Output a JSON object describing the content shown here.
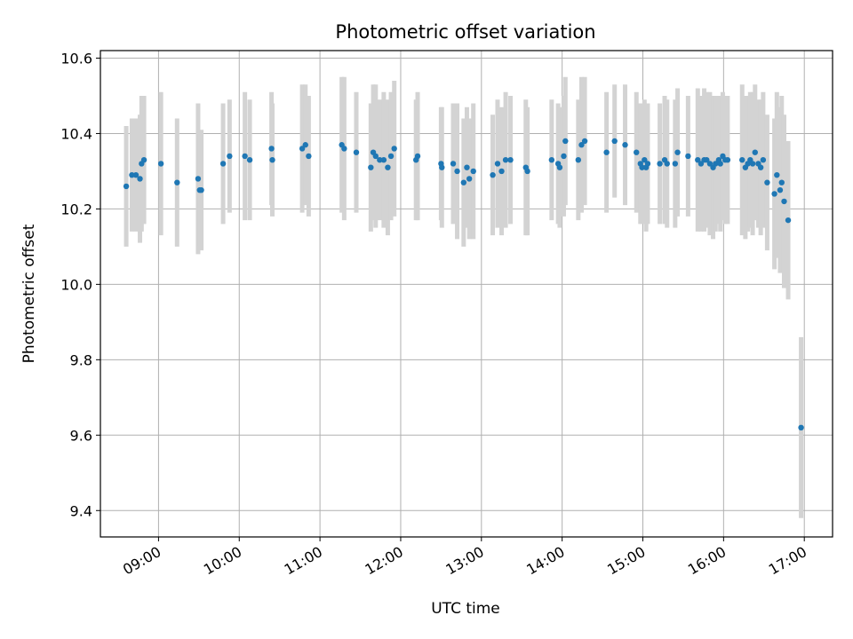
{
  "chart_data": {
    "type": "scatter",
    "title": "Photometric offset variation",
    "xlabel": "UTC time",
    "ylabel": "Photometric offset",
    "x_ticks": [
      "09:00",
      "10:00",
      "11:00",
      "12:00",
      "13:00",
      "14:00",
      "15:00",
      "16:00",
      "17:00"
    ],
    "y_ticks": [
      "9.4",
      "9.6",
      "9.8",
      "10.0",
      "10.2",
      "10.4",
      "10.6"
    ],
    "xlim_hours": [
      8.28,
      17.35
    ],
    "ylim": [
      9.33,
      10.62
    ],
    "grid": true,
    "point_color": "#1f77b4",
    "errorbar_color": "#d3d3d3",
    "points": [
      [
        8.6,
        10.26,
        0.16
      ],
      [
        8.67,
        10.29,
        0.15
      ],
      [
        8.72,
        10.29,
        0.15
      ],
      [
        8.77,
        10.28,
        0.17
      ],
      [
        8.79,
        10.32,
        0.18
      ],
      [
        8.82,
        10.33,
        0.17
      ],
      [
        9.03,
        10.32,
        0.19
      ],
      [
        9.23,
        10.27,
        0.17
      ],
      [
        9.49,
        10.28,
        0.2
      ],
      [
        9.51,
        10.25,
        0.15
      ],
      [
        9.53,
        10.25,
        0.16
      ],
      [
        9.8,
        10.32,
        0.16
      ],
      [
        9.88,
        10.34,
        0.15
      ],
      [
        10.07,
        10.34,
        0.17
      ],
      [
        10.13,
        10.33,
        0.16
      ],
      [
        10.4,
        10.36,
        0.15
      ],
      [
        10.41,
        10.33,
        0.15
      ],
      [
        10.78,
        10.36,
        0.17
      ],
      [
        10.82,
        10.37,
        0.16
      ],
      [
        10.86,
        10.34,
        0.16
      ],
      [
        11.27,
        10.37,
        0.18
      ],
      [
        11.3,
        10.36,
        0.19
      ],
      [
        11.45,
        10.35,
        0.16
      ],
      [
        11.63,
        10.31,
        0.17
      ],
      [
        11.66,
        10.35,
        0.18
      ],
      [
        11.69,
        10.34,
        0.19
      ],
      [
        11.74,
        10.33,
        0.16
      ],
      [
        11.79,
        10.33,
        0.18
      ],
      [
        11.84,
        10.31,
        0.18
      ],
      [
        11.88,
        10.34,
        0.17
      ],
      [
        11.92,
        10.36,
        0.18
      ],
      [
        12.19,
        10.33,
        0.16
      ],
      [
        12.21,
        10.34,
        0.17
      ],
      [
        12.5,
        10.32,
        0.15
      ],
      [
        12.51,
        10.31,
        0.16
      ],
      [
        12.65,
        10.32,
        0.16
      ],
      [
        12.7,
        10.3,
        0.18
      ],
      [
        12.78,
        10.27,
        0.17
      ],
      [
        12.82,
        10.31,
        0.16
      ],
      [
        12.85,
        10.28,
        0.16
      ],
      [
        12.9,
        10.3,
        0.18
      ],
      [
        13.14,
        10.29,
        0.16
      ],
      [
        13.2,
        10.32,
        0.17
      ],
      [
        13.25,
        10.3,
        0.17
      ],
      [
        13.3,
        10.33,
        0.18
      ],
      [
        13.36,
        10.33,
        0.17
      ],
      [
        13.55,
        10.31,
        0.18
      ],
      [
        13.57,
        10.3,
        0.17
      ],
      [
        13.87,
        10.33,
        0.16
      ],
      [
        13.95,
        10.32,
        0.16
      ],
      [
        13.97,
        10.31,
        0.16
      ],
      [
        14.02,
        10.34,
        0.16
      ],
      [
        14.04,
        10.38,
        0.17
      ],
      [
        14.2,
        10.33,
        0.16
      ],
      [
        14.24,
        10.37,
        0.18
      ],
      [
        14.28,
        10.38,
        0.17
      ],
      [
        14.55,
        10.35,
        0.16
      ],
      [
        14.65,
        10.38,
        0.15
      ],
      [
        14.78,
        10.37,
        0.16
      ],
      [
        14.92,
        10.35,
        0.16
      ],
      [
        14.97,
        10.32,
        0.16
      ],
      [
        14.99,
        10.31,
        0.15
      ],
      [
        15.02,
        10.33,
        0.16
      ],
      [
        15.04,
        10.31,
        0.17
      ],
      [
        15.06,
        10.32,
        0.16
      ],
      [
        15.21,
        10.32,
        0.16
      ],
      [
        15.27,
        10.33,
        0.17
      ],
      [
        15.3,
        10.32,
        0.17
      ],
      [
        15.4,
        10.32,
        0.17
      ],
      [
        15.43,
        10.35,
        0.17
      ],
      [
        15.56,
        10.34,
        0.16
      ],
      [
        15.68,
        10.33,
        0.19
      ],
      [
        15.72,
        10.32,
        0.18
      ],
      [
        15.76,
        10.33,
        0.19
      ],
      [
        15.79,
        10.33,
        0.18
      ],
      [
        15.83,
        10.32,
        0.19
      ],
      [
        15.87,
        10.31,
        0.19
      ],
      [
        15.9,
        10.32,
        0.18
      ],
      [
        15.94,
        10.33,
        0.17
      ],
      [
        15.96,
        10.32,
        0.18
      ],
      [
        15.99,
        10.34,
        0.17
      ],
      [
        16.02,
        10.33,
        0.17
      ],
      [
        16.05,
        10.33,
        0.17
      ],
      [
        16.23,
        10.33,
        0.2
      ],
      [
        16.27,
        10.31,
        0.19
      ],
      [
        16.3,
        10.32,
        0.18
      ],
      [
        16.33,
        10.33,
        0.18
      ],
      [
        16.36,
        10.32,
        0.19
      ],
      [
        16.39,
        10.35,
        0.18
      ],
      [
        16.43,
        10.32,
        0.17
      ],
      [
        16.46,
        10.31,
        0.18
      ],
      [
        16.49,
        10.33,
        0.18
      ],
      [
        16.54,
        10.27,
        0.18
      ],
      [
        16.63,
        10.24,
        0.2
      ],
      [
        16.66,
        10.29,
        0.22
      ],
      [
        16.7,
        10.25,
        0.22
      ],
      [
        16.72,
        10.27,
        0.23
      ],
      [
        16.75,
        10.22,
        0.23
      ],
      [
        16.8,
        10.17,
        0.21
      ],
      [
        16.96,
        9.62,
        0.24
      ]
    ]
  }
}
